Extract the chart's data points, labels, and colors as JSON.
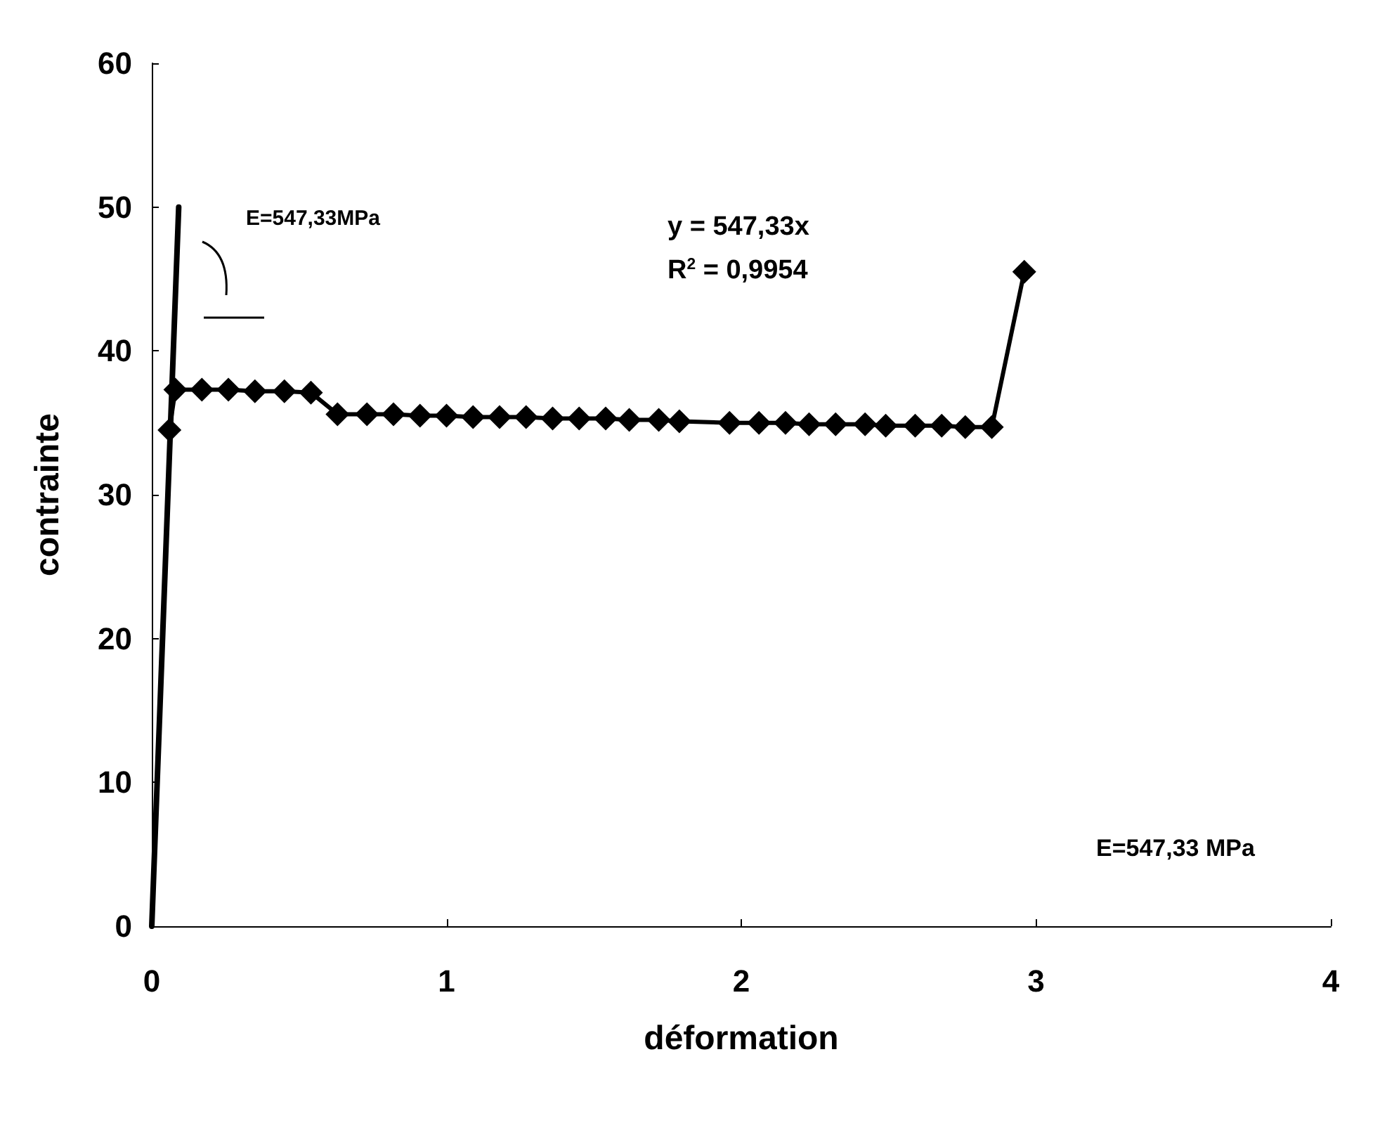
{
  "chart_data": {
    "type": "line",
    "xlabel": "déformation",
    "ylabel": "contrainte",
    "xlim": [
      0,
      4
    ],
    "xticks": [
      0,
      1,
      2,
      3,
      4
    ],
    "ylim": [
      0,
      60
    ],
    "yticks": [
      0,
      10,
      20,
      30,
      40,
      50,
      60
    ],
    "grid": false,
    "marker": "diamond",
    "line_style": "solid",
    "annotations": [
      "E=547,33MPa",
      "y = 547,33x",
      "R$^{2}$ = 0,9954",
      "E=547,33 MPa"
    ],
    "series": [
      {
        "color": "#000000",
        "x": [
          0.06,
          0.08,
          0.17,
          0.26,
          0.35,
          0.45,
          0.54,
          0.63,
          0.73,
          0.82,
          0.91,
          1.0,
          1.09,
          1.18,
          1.27,
          1.36,
          1.45,
          1.54,
          1.62,
          1.72,
          1.79,
          1.96,
          2.06,
          2.15,
          2.23,
          2.32,
          2.42,
          2.49,
          2.59,
          2.68,
          2.76,
          2.85,
          2.96
        ],
        "values": [
          34.5,
          37.3,
          37.3,
          37.3,
          37.2,
          37.2,
          37.1,
          35.6,
          35.6,
          35.6,
          35.5,
          35.5,
          35.4,
          35.4,
          35.4,
          35.3,
          35.3,
          35.3,
          35.2,
          35.2,
          35.1,
          35.0,
          35.0,
          35.0,
          34.9,
          34.9,
          34.9,
          34.8,
          34.8,
          34.8,
          34.7,
          34.7,
          45.5
        ]
      },
      {
        "type": "line",
        "color": "#000000",
        "marker": "none",
        "x": [
          0,
          0.0914
        ],
        "values": [
          0,
          50
        ]
      }
    ]
  }
}
